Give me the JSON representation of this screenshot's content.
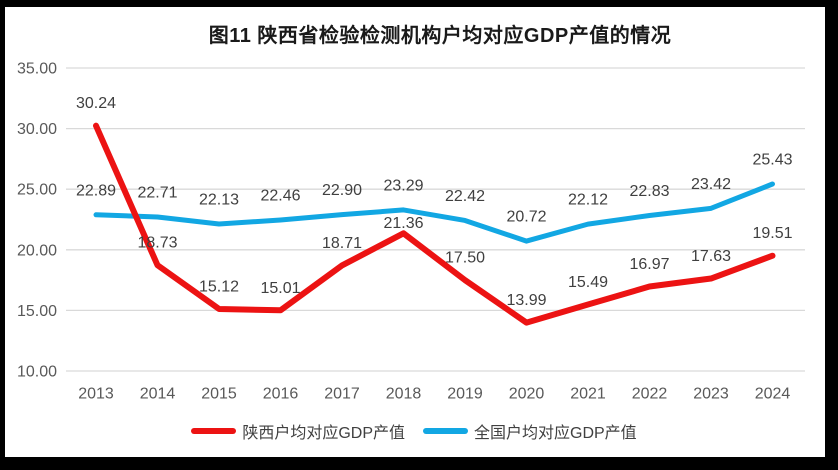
{
  "page": {
    "frame_color": "#000000",
    "canvas_color": "#ffffff"
  },
  "chart_data": {
    "type": "line",
    "title": "图11 陕西省检验检测机构户均对应GDP产值的情况",
    "categories": [
      "2013",
      "2014",
      "2015",
      "2016",
      "2017",
      "2018",
      "2019",
      "2020",
      "2021",
      "2022",
      "2023",
      "2024"
    ],
    "series": [
      {
        "name": "陕西户均对应GDP产值",
        "color": "#EC1313",
        "values": [
          30.24,
          18.73,
          15.12,
          15.01,
          18.71,
          21.36,
          17.5,
          13.99,
          15.49,
          16.97,
          17.63,
          19.51
        ]
      },
      {
        "name": "全国户均对应GDP产值",
        "color": "#12A7E3",
        "values": [
          22.89,
          22.71,
          22.13,
          22.46,
          22.9,
          23.29,
          22.42,
          20.72,
          22.12,
          22.83,
          23.42,
          25.43
        ]
      }
    ],
    "y_ticks": [
      35,
      30,
      25,
      20,
      15,
      10
    ],
    "y_tick_labels": [
      "35.00",
      "30.00",
      "25.00",
      "20.00",
      "15.00",
      "10.00"
    ],
    "ylim": [
      10,
      35
    ],
    "grid": true,
    "data_labels": true,
    "legend_position": "bottom",
    "gridline_color": "#D9D9D9",
    "axis_label_color": "#595959",
    "data_label_color": "#404040"
  }
}
